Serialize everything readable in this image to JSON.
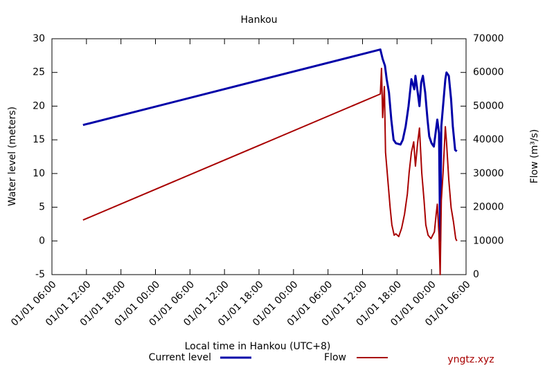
{
  "chart_data": {
    "type": "line",
    "title": "Hankou",
    "x_label": "Local time in Hankou (UTC+8)",
    "y_label": "Water level (meters)",
    "y2_label": "Flow (m³/s)",
    "watermark": "yngtz.xyz",
    "xlim": [
      0,
      72
    ],
    "xticks": [
      {
        "value": 0,
        "label": "01/01 06:00"
      },
      {
        "value": 6,
        "label": "01/01 12:00"
      },
      {
        "value": 12,
        "label": "01/01 18:00"
      },
      {
        "value": 18,
        "label": "01/01 00:00"
      },
      {
        "value": 24,
        "label": "01/01 06:00"
      },
      {
        "value": 30,
        "label": "01/01 12:00"
      },
      {
        "value": 36,
        "label": "01/01 18:00"
      },
      {
        "value": 42,
        "label": "01/01 00:00"
      },
      {
        "value": 48,
        "label": "01/01 06:00"
      },
      {
        "value": 54,
        "label": "01/01 12:00"
      },
      {
        "value": 60,
        "label": "01/01 18:00"
      },
      {
        "value": 66,
        "label": "01/01 00:00"
      },
      {
        "value": 72,
        "label": "01/01 06:00"
      }
    ],
    "ylim": [
      -5,
      30
    ],
    "yticks": [
      -5,
      0,
      5,
      10,
      15,
      20,
      25,
      30
    ],
    "y2lim": [
      0,
      70000
    ],
    "y2ticks": [
      0,
      10000,
      20000,
      30000,
      40000,
      50000,
      60000,
      70000
    ],
    "series": [
      {
        "name": "Current level",
        "color": "#0000a8",
        "axis": "y",
        "x": [
          5.4,
          57.1,
          57.5,
          57.9,
          58.2,
          58.6,
          59.0,
          59.4,
          59.8,
          60.6,
          61.0,
          61.5,
          62.0,
          62.5,
          63.0,
          63.2,
          63.6,
          63.9,
          64.2,
          64.5,
          64.9,
          65.3,
          65.6,
          66.0,
          66.4,
          66.7,
          67.0,
          67.3,
          67.5,
          67.7,
          67.9,
          68.1,
          68.4,
          68.6,
          69.0,
          69.4,
          69.7,
          70.1,
          70.4
        ],
        "values": [
          17.2,
          28.4,
          27,
          26,
          24,
          22,
          18,
          15,
          14.5,
          14.3,
          15,
          17,
          20,
          24,
          22.5,
          24.5,
          22,
          20,
          23.5,
          24.5,
          22,
          18,
          15.5,
          14.5,
          14,
          16,
          18,
          16,
          0,
          17,
          19,
          21,
          24,
          25,
          24.5,
          21,
          17,
          13.5,
          13.3
        ]
      },
      {
        "name": "Flow",
        "color": "#a80000",
        "axis": "y2",
        "x": [
          5.4,
          57.1,
          57.3,
          57.5,
          57.8,
          58.0,
          58.4,
          58.8,
          59.1,
          59.5,
          59.8,
          60.3,
          60.8,
          61.3,
          61.8,
          62.1,
          62.5,
          62.9,
          63.2,
          63.6,
          63.9,
          64.3,
          64.7,
          65.0,
          65.4,
          65.9,
          66.5,
          66.8,
          67.0,
          67.3,
          67.5,
          67.7,
          68.0,
          68.4,
          68.6,
          69.0,
          69.4,
          69.8,
          70.2,
          70.4
        ],
        "values": [
          16200,
          53600,
          61200,
          46600,
          55800,
          36300,
          28100,
          19900,
          14800,
          11700,
          12100,
          11300,
          13800,
          17900,
          24000,
          30200,
          36300,
          39400,
          32200,
          39400,
          43500,
          30200,
          22000,
          14800,
          11700,
          10700,
          12700,
          17900,
          20900,
          11700,
          0,
          22000,
          30200,
          43900,
          39400,
          28100,
          19900,
          15800,
          10700,
          10000
        ]
      }
    ]
  }
}
